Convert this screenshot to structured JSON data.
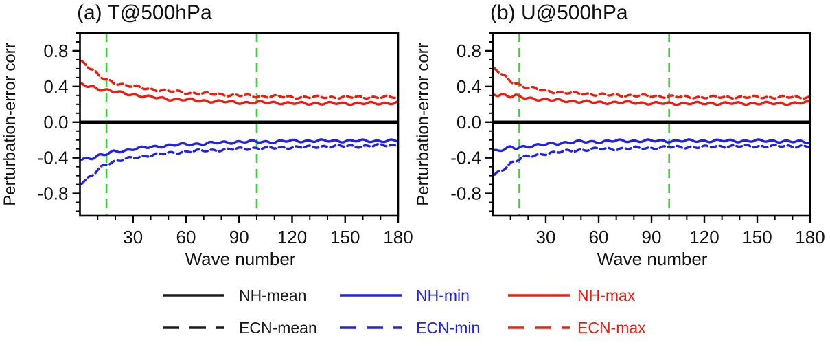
{
  "figure": {
    "background": "#ffffff"
  },
  "chart_data": [
    {
      "type": "line",
      "panel_label": "a",
      "title": "(a) T@500hPa",
      "xlabel": "Wave number",
      "ylabel": "Perturbation-error corr",
      "xlim": [
        0,
        180
      ],
      "ylim": [
        -1.05,
        1.0
      ],
      "xticks": [
        30,
        60,
        90,
        120,
        150,
        180
      ],
      "xtick_minor_step": 10,
      "yticks": [
        -0.8,
        -0.4,
        0.0,
        0.4,
        0.8
      ],
      "ytick_minor_step": 0.1,
      "grid": false,
      "vlines": {
        "x": [
          15,
          100
        ],
        "color": "#2fd52f",
        "style": "dashed"
      },
      "series": [
        {
          "name": "NH-mean",
          "color": "#000000",
          "style": "solid",
          "x": [
            0,
            180
          ],
          "y": [
            0.0,
            0.0
          ]
        },
        {
          "name": "ECN-mean",
          "color": "#000000",
          "style": "dashed",
          "x": [
            0,
            180
          ],
          "y": [
            0.0,
            0.0
          ]
        },
        {
          "name": "NH-min",
          "color": "#2222e0",
          "style": "solid",
          "x": [
            1,
            3,
            5,
            8,
            10,
            13,
            15,
            20,
            25,
            30,
            40,
            50,
            60,
            70,
            80,
            90,
            100,
            110,
            120,
            130,
            140,
            150,
            160,
            170,
            180
          ],
          "y": [
            -0.42,
            -0.41,
            -0.4,
            -0.39,
            -0.38,
            -0.37,
            -0.36,
            -0.33,
            -0.32,
            -0.3,
            -0.28,
            -0.26,
            -0.25,
            -0.24,
            -0.23,
            -0.22,
            -0.22,
            -0.22,
            -0.21,
            -0.21,
            -0.21,
            -0.21,
            -0.21,
            -0.21,
            -0.21
          ]
        },
        {
          "name": "NH-max",
          "color": "#ee1c0f",
          "style": "solid",
          "x": [
            1,
            3,
            5,
            8,
            10,
            13,
            15,
            20,
            25,
            30,
            40,
            50,
            60,
            70,
            80,
            90,
            100,
            110,
            120,
            130,
            140,
            150,
            160,
            170,
            180
          ],
          "y": [
            0.42,
            0.41,
            0.4,
            0.39,
            0.38,
            0.37,
            0.36,
            0.34,
            0.32,
            0.31,
            0.28,
            0.26,
            0.25,
            0.24,
            0.23,
            0.22,
            0.22,
            0.22,
            0.21,
            0.21,
            0.21,
            0.21,
            0.21,
            0.21,
            0.22
          ]
        },
        {
          "name": "ECN-min",
          "color": "#2222e0",
          "style": "dashed",
          "x": [
            1,
            3,
            5,
            8,
            10,
            13,
            15,
            20,
            25,
            30,
            40,
            50,
            60,
            70,
            80,
            90,
            100,
            110,
            120,
            130,
            140,
            150,
            160,
            170,
            180
          ],
          "y": [
            -0.68,
            -0.66,
            -0.63,
            -0.58,
            -0.54,
            -0.49,
            -0.46,
            -0.44,
            -0.42,
            -0.4,
            -0.37,
            -0.35,
            -0.33,
            -0.32,
            -0.31,
            -0.3,
            -0.29,
            -0.29,
            -0.28,
            -0.28,
            -0.27,
            -0.27,
            -0.27,
            -0.26,
            -0.26
          ]
        },
        {
          "name": "ECN-max",
          "color": "#ee1c0f",
          "style": "dashed",
          "x": [
            1,
            3,
            5,
            8,
            10,
            13,
            15,
            20,
            25,
            30,
            40,
            50,
            60,
            70,
            80,
            90,
            100,
            110,
            120,
            130,
            140,
            150,
            160,
            170,
            180
          ],
          "y": [
            0.68,
            0.66,
            0.62,
            0.57,
            0.53,
            0.49,
            0.47,
            0.44,
            0.42,
            0.4,
            0.37,
            0.35,
            0.33,
            0.32,
            0.31,
            0.3,
            0.29,
            0.29,
            0.28,
            0.28,
            0.28,
            0.28,
            0.28,
            0.28,
            0.28
          ]
        }
      ]
    },
    {
      "type": "line",
      "panel_label": "b",
      "title": "(b) U@500hPa",
      "xlabel": "Wave number",
      "ylabel": "Perturbation-error corr",
      "xlim": [
        0,
        180
      ],
      "ylim": [
        -1.05,
        1.0
      ],
      "xticks": [
        30,
        60,
        90,
        120,
        150,
        180
      ],
      "xtick_minor_step": 10,
      "yticks": [
        -0.8,
        -0.4,
        0.0,
        0.4,
        0.8
      ],
      "ytick_minor_step": 0.1,
      "grid": false,
      "vlines": {
        "x": [
          15,
          100
        ],
        "color": "#2fd52f",
        "style": "dashed"
      },
      "series": [
        {
          "name": "NH-mean",
          "color": "#000000",
          "style": "solid",
          "x": [
            0,
            180
          ],
          "y": [
            0.0,
            0.0
          ]
        },
        {
          "name": "ECN-mean",
          "color": "#000000",
          "style": "dashed",
          "x": [
            0,
            180
          ],
          "y": [
            0.0,
            0.0
          ]
        },
        {
          "name": "NH-min",
          "color": "#2222e0",
          "style": "solid",
          "x": [
            1,
            3,
            5,
            8,
            10,
            13,
            15,
            20,
            25,
            30,
            40,
            50,
            60,
            70,
            80,
            90,
            100,
            110,
            120,
            130,
            140,
            150,
            160,
            170,
            180
          ],
          "y": [
            -0.32,
            -0.32,
            -0.31,
            -0.3,
            -0.29,
            -0.29,
            -0.28,
            -0.27,
            -0.26,
            -0.25,
            -0.23,
            -0.22,
            -0.22,
            -0.21,
            -0.21,
            -0.21,
            -0.21,
            -0.21,
            -0.21,
            -0.21,
            -0.21,
            -0.21,
            -0.21,
            -0.22,
            -0.22
          ]
        },
        {
          "name": "NH-max",
          "color": "#ee1c0f",
          "style": "solid",
          "x": [
            1,
            3,
            5,
            8,
            10,
            13,
            15,
            20,
            25,
            30,
            40,
            50,
            60,
            70,
            80,
            90,
            100,
            110,
            120,
            130,
            140,
            150,
            160,
            170,
            180
          ],
          "y": [
            0.32,
            0.31,
            0.31,
            0.3,
            0.29,
            0.29,
            0.28,
            0.27,
            0.26,
            0.25,
            0.24,
            0.23,
            0.22,
            0.22,
            0.22,
            0.21,
            0.21,
            0.21,
            0.21,
            0.21,
            0.21,
            0.21,
            0.21,
            0.21,
            0.22
          ]
        },
        {
          "name": "ECN-min",
          "color": "#2222e0",
          "style": "dashed",
          "x": [
            1,
            3,
            5,
            8,
            10,
            13,
            15,
            20,
            25,
            30,
            40,
            50,
            60,
            70,
            80,
            90,
            100,
            110,
            120,
            130,
            140,
            150,
            160,
            170,
            180
          ],
          "y": [
            -0.6,
            -0.57,
            -0.54,
            -0.49,
            -0.46,
            -0.43,
            -0.41,
            -0.39,
            -0.37,
            -0.35,
            -0.33,
            -0.31,
            -0.3,
            -0.3,
            -0.29,
            -0.29,
            -0.28,
            -0.28,
            -0.28,
            -0.27,
            -0.27,
            -0.27,
            -0.27,
            -0.27,
            -0.27
          ]
        },
        {
          "name": "ECN-max",
          "color": "#ee1c0f",
          "style": "dashed",
          "x": [
            1,
            3,
            5,
            8,
            10,
            13,
            15,
            20,
            25,
            30,
            40,
            50,
            60,
            70,
            80,
            90,
            100,
            110,
            120,
            130,
            140,
            150,
            160,
            170,
            180
          ],
          "y": [
            0.6,
            0.57,
            0.53,
            0.49,
            0.46,
            0.44,
            0.42,
            0.39,
            0.37,
            0.35,
            0.33,
            0.32,
            0.31,
            0.3,
            0.3,
            0.29,
            0.29,
            0.28,
            0.28,
            0.28,
            0.28,
            0.28,
            0.28,
            0.28,
            0.28
          ]
        }
      ]
    }
  ],
  "legend": {
    "position": "bottom-center",
    "items": [
      {
        "label": "NH-mean",
        "color": "#1a1a1a",
        "style": "solid"
      },
      {
        "label": "NH-min",
        "color": "#2222e0",
        "style": "solid"
      },
      {
        "label": "NH-max",
        "color": "#ee1c0f",
        "style": "solid"
      },
      {
        "label": "ECN-mean",
        "color": "#1a1a1a",
        "style": "dashed"
      },
      {
        "label": "ECN-min",
        "color": "#2222e0",
        "style": "dashed"
      },
      {
        "label": "ECN-max",
        "color": "#ee1c0f",
        "style": "dashed"
      }
    ]
  }
}
